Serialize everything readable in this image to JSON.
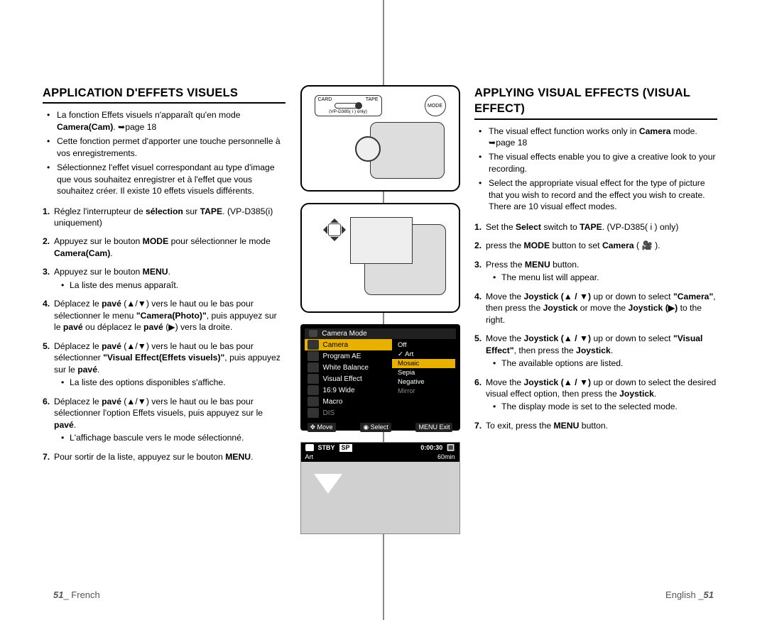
{
  "left": {
    "title": "APPLICATION D'EFFETS VISUELS",
    "bullets": [
      "La fonction Effets visuels n'apparaît qu'en mode <b>Camera(Cam)</b>. ➥page 18",
      "Cette fonction permet d'apporter une touche personnelle à vos enregistrements.",
      "Sélectionnez l'effet visuel correspondant au type d'image que vous souhaitez enregistrer et à l'effet que vous souhaitez créer. Il existe 10 effets visuels différents."
    ],
    "steps": [
      {
        "n": "1.",
        "html": "Réglez l'interrupteur de <b>sélection</b> sur <b>TAPE</b>. (VP-D385(i) uniquement)"
      },
      {
        "n": "2.",
        "html": "Appuyez sur le bouton <b>MODE</b> pour sélectionner le mode <b>Camera(Cam)</b>."
      },
      {
        "n": "3.",
        "html": "Appuyez sur le bouton <b>MENU</b>.",
        "sub": [
          "La liste des menus apparaît."
        ]
      },
      {
        "n": "4.",
        "html": "Déplacez le <b>pavé</b> (▲/▼) vers le haut ou le bas pour sélectionner le menu <b>\"Camera(Photo)\"</b>, puis appuyez sur le <b>pavé</b> ou déplacez le <b>pavé</b> (▶) vers la droite."
      },
      {
        "n": "5.",
        "html": "Déplacez le <b>pavé</b> (▲/▼) vers le haut ou le bas pour sélectionner <b>\"Visual Effect(Effets visuels)\"</b>, puis appuyez sur le <b>pavé</b>.",
        "sub": [
          "La liste des options disponibles s'affiche."
        ]
      },
      {
        "n": "6.",
        "html": "Déplacez le <b>pavé</b> (▲/▼) vers le haut ou le bas pour sélectionner l'option Effets visuels, puis appuyez sur le <b>pavé</b>.",
        "sub": [
          "L'affichage bascule vers le mode sélectionné."
        ]
      },
      {
        "n": "7.",
        "html": "Pour sortir de la liste, appuyez sur le bouton <b>MENU</b>."
      }
    ]
  },
  "right": {
    "title": "APPLYING VISUAL EFFECTS (VISUAL EFFECT)",
    "bullets": [
      "The visual effect function works only in <b>Camera</b> mode. ➥page 18",
      "The visual effects enable you to give a creative look to your recording.",
      "Select the appropriate visual effect for the type of picture that you wish to record and the effect you wish to create. There are 10 visual effect modes."
    ],
    "steps": [
      {
        "n": "1.",
        "html": "Set the <b>Select</b> switch to <b>TAPE</b>. (VP-D385( i ) only)"
      },
      {
        "n": "2.",
        "html": "press the <b>MODE</b> button to set <b>Camera</b> ( 🎥 )."
      },
      {
        "n": "3.",
        "html": "Press the <b>MENU</b> button.",
        "sub": [
          "The menu list will appear."
        ]
      },
      {
        "n": "4.",
        "html": "Move the <b>Joystick (▲ / ▼)</b> up or down to select <b>\"Camera\"</b>, then press the <b>Joystick</b> or move the <b>Joystick (▶)</b> to the right."
      },
      {
        "n": "5.",
        "html": "Move the <b>Joystick (▲ / ▼)</b> up or down to select <b>\"Visual Effect\"</b>, then press the <b>Joystick</b>.",
        "sub": [
          "The available options are listed."
        ]
      },
      {
        "n": "6.",
        "html": "Move the <b>Joystick (▲ / ▼)</b> up or down to select the desired visual effect option, then press the <b>Joystick</b>.",
        "sub": [
          "The display mode is set to the selected mode."
        ]
      },
      {
        "n": "7.",
        "html": "To exit, press the <b>MENU</b> button."
      }
    ]
  },
  "center": {
    "switch": {
      "card": "CARD",
      "tape": "TAPE",
      "note": "(VP-D385( i ) only)"
    },
    "mode": "MODE",
    "menu": {
      "title": "Camera Mode",
      "itemsL": [
        "Camera",
        "Program AE",
        "White Balance",
        "Visual Effect",
        "16:9 Wide",
        "Macro",
        "DIS"
      ],
      "itemsR": [
        "",
        "Off",
        "✓ Art",
        "Mosaic",
        "Sepia",
        "Negative",
        "Mirror"
      ],
      "selL": 0,
      "selR": 3,
      "footer": {
        "move": "✥ Move",
        "select": "◉ Select",
        "exit": "MENU Exit"
      }
    },
    "lcd": {
      "stby": "STBY",
      "sp": "SP",
      "time": "0:00:30",
      "batt": "🔳",
      "min": "60min",
      "tag": "Art"
    }
  },
  "footer": {
    "leftPage": "51",
    "leftLang": "_ French",
    "rightLang": "English _",
    "rightPage": "51"
  },
  "colors": {
    "text": "#000000",
    "bg": "#ffffff",
    "rule": "#000000",
    "menuBg": "#000000",
    "menuSel": "#e8b000",
    "menuOff": "#888888",
    "lcdBg": "#d0d0d0",
    "illusStroke": "#333333"
  }
}
